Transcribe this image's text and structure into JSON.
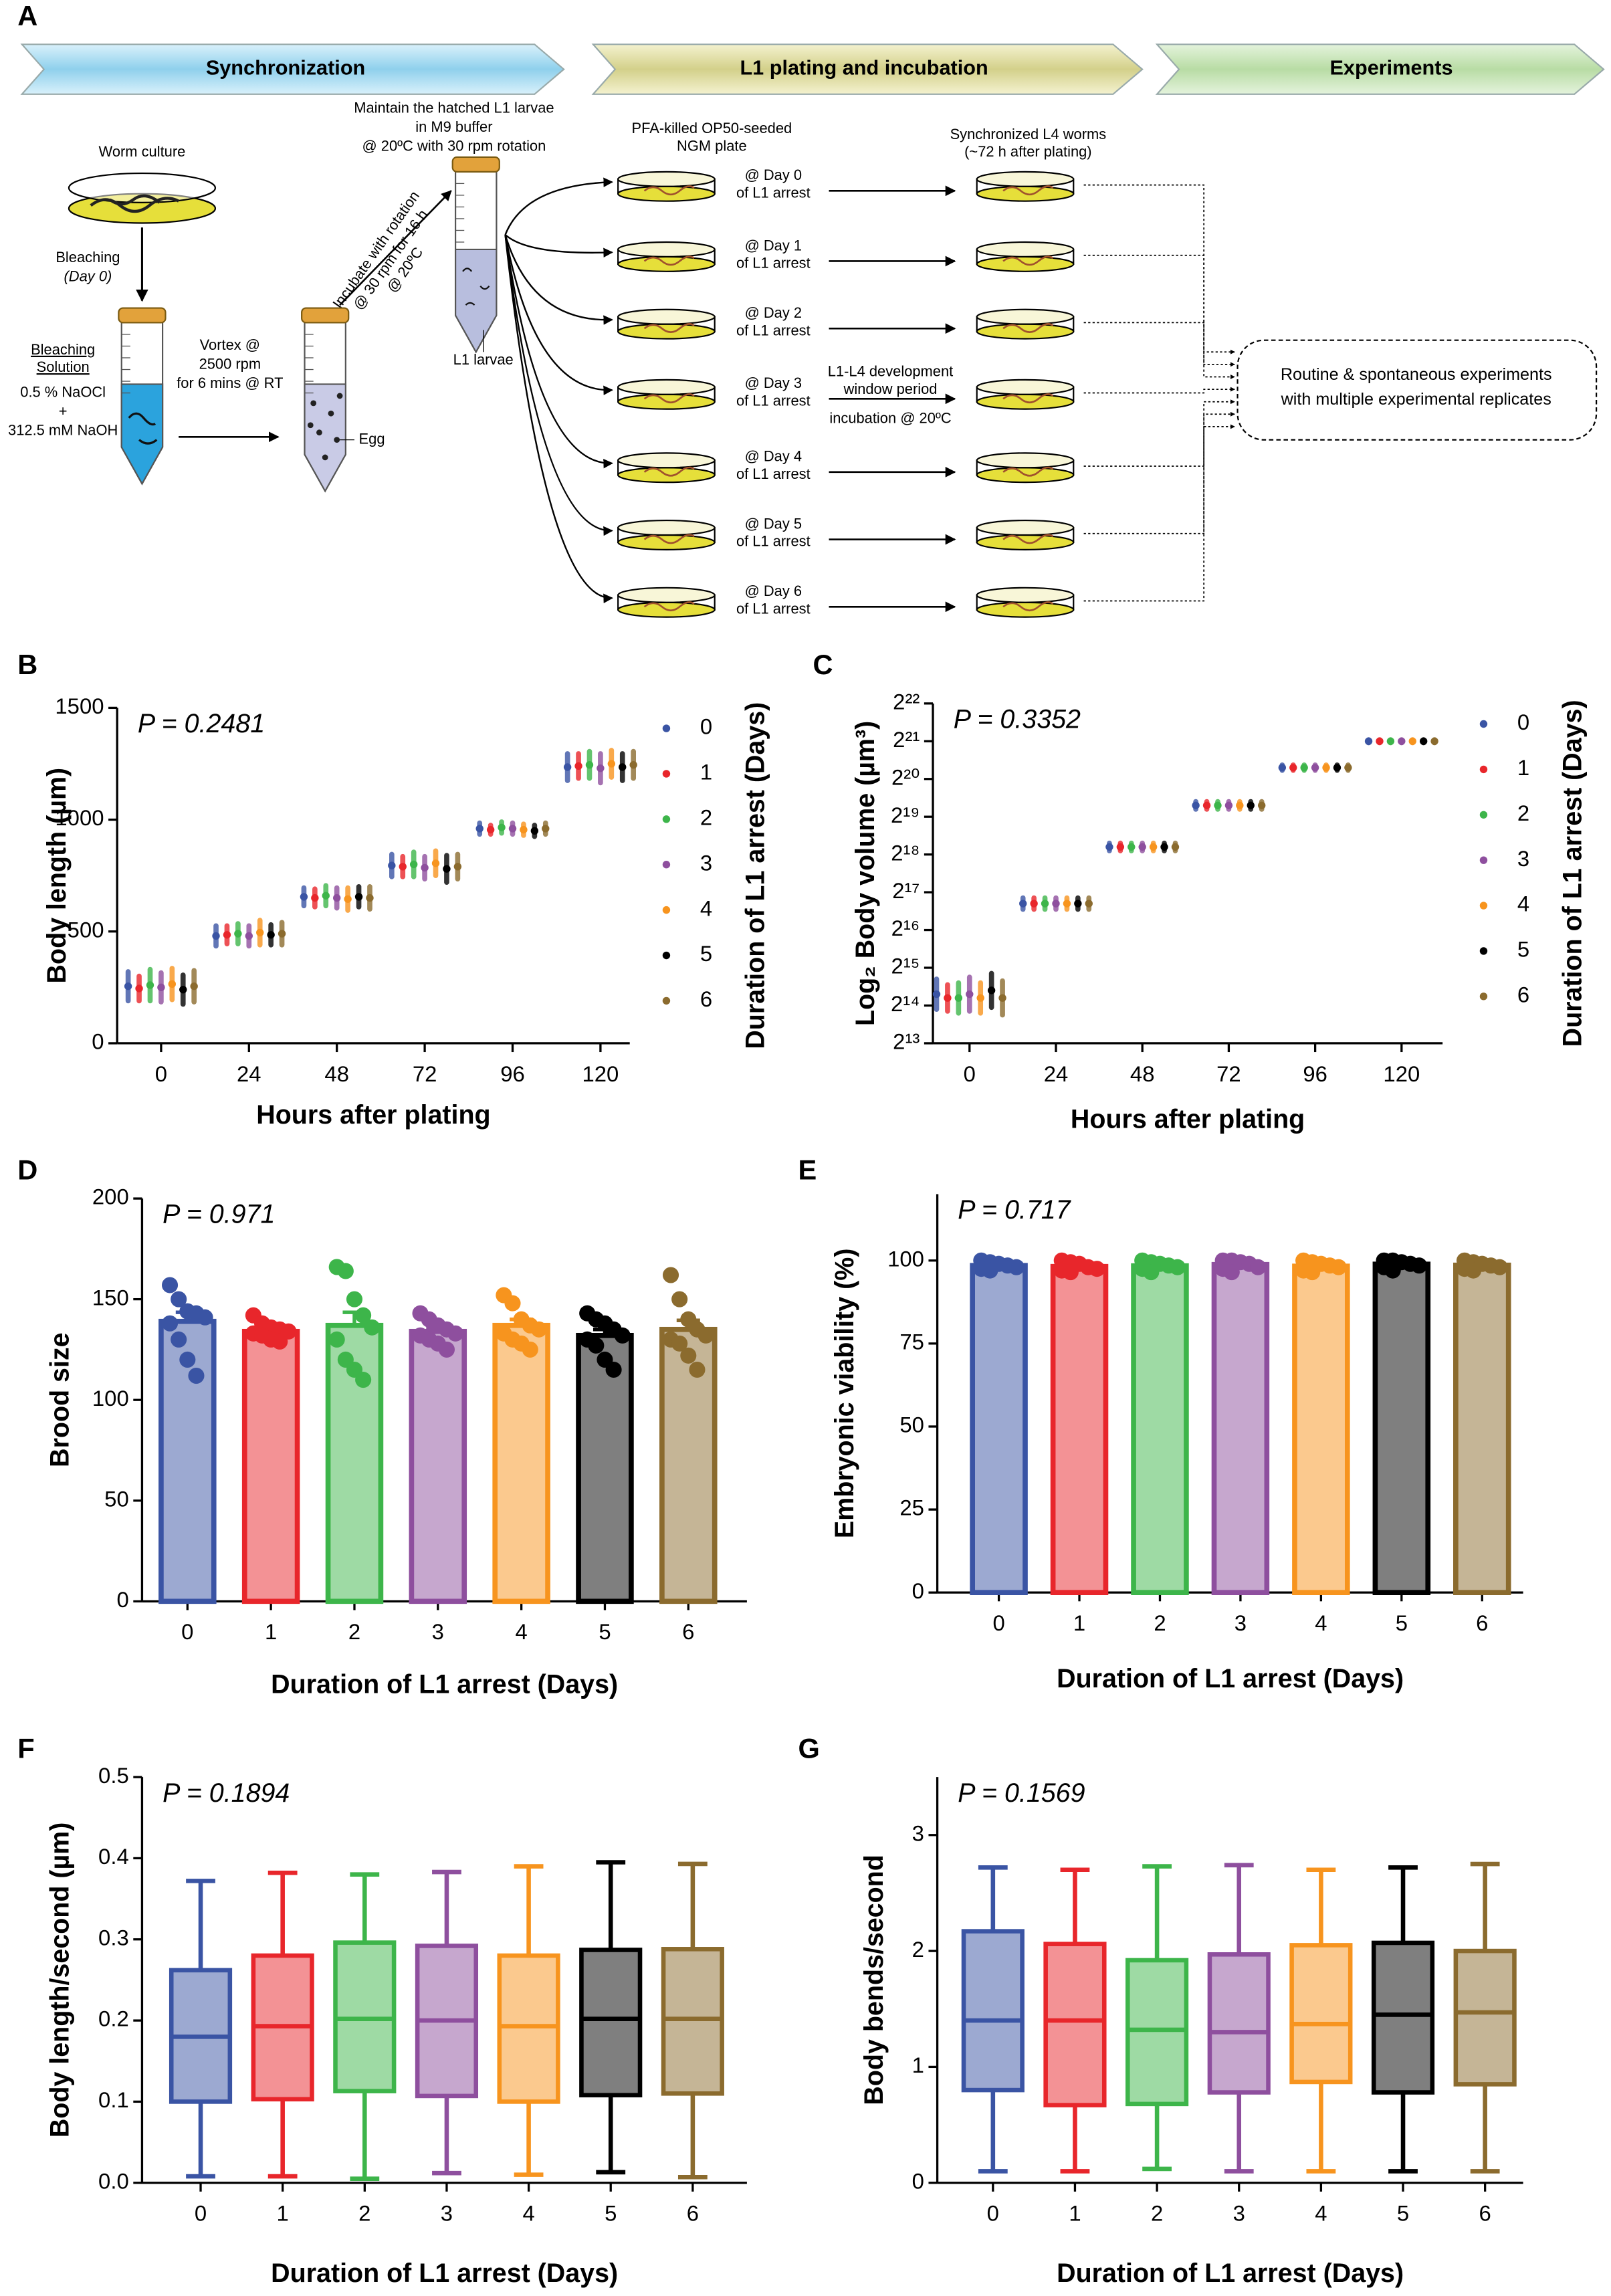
{
  "diagram": {
    "panel_label": "A",
    "stages": [
      "Synchronization",
      "L1 plating and incubation",
      "Experiments"
    ],
    "worm_culture": "Worm culture",
    "bleaching": [
      "Bleaching",
      "(Day 0)"
    ],
    "bleaching_solution": [
      "Bleaching",
      "Solution",
      "0.5 % NaOCl",
      "+",
      "312.5 mM NaOH"
    ],
    "vortex": [
      "Vortex @",
      "2500 rpm",
      "for 6 mins @ RT"
    ],
    "egg": "Egg",
    "incubate": [
      "Incubate with rotation",
      "@ 30 rpm for 16 h",
      "@ 20ºC"
    ],
    "maintain": [
      "Maintain the hatched L1 larvae",
      "in M9 buffer",
      "@ 20ºC with 30 rpm rotation"
    ],
    "l1_larvae": "L1 larvae",
    "plate_label": [
      "PFA-killed OP50-seeded",
      "NGM plate"
    ],
    "l4_label": [
      "Synchronized L4 worms",
      "(~72 h after plating)"
    ],
    "plates": [
      {
        "day": "@ Day 0",
        "arrest": "of L1 arrest"
      },
      {
        "day": "@ Day 1",
        "arrest": "of L1 arrest"
      },
      {
        "day": "@ Day 2",
        "arrest": "of L1 arrest"
      },
      {
        "day": "@ Day 3",
        "arrest": "of L1 arrest"
      },
      {
        "day": "@ Day 4",
        "arrest": "of L1 arrest"
      },
      {
        "day": "@ Day 5",
        "arrest": "of L1 arrest"
      },
      {
        "day": "@ Day 6",
        "arrest": "of L1 arrest"
      }
    ],
    "window": [
      "L1-L4 development",
      "window period",
      "incubation @ 20ºC"
    ],
    "experiments": [
      "Routine & spontaneous experiments",
      "with multiple experimental replicates"
    ]
  },
  "chart_data": [
    {
      "panel_label": "B",
      "type": "strip",
      "annotation": "P = 0.2481",
      "x_label": "Hours after plating",
      "y_label": "Body length (µm)",
      "legend_title": "Duration of L1 arrest (Days)",
      "categories": [
        "0",
        "24",
        "48",
        "72",
        "96",
        "120"
      ],
      "ylim": [
        0,
        1500
      ],
      "yticks": [
        0,
        500,
        1000,
        1500
      ],
      "series": [
        {
          "name": "0",
          "color": "#3a54a4",
          "values": [
            255,
            480,
            655,
            795,
            960,
            1235
          ],
          "errors": [
            65,
            45,
            40,
            50,
            25,
            60
          ]
        },
        {
          "name": "1",
          "color": "#e8262b",
          "values": [
            245,
            485,
            650,
            790,
            955,
            1240
          ],
          "errors": [
            55,
            40,
            40,
            45,
            20,
            55
          ]
        },
        {
          "name": "2",
          "color": "#3db54a",
          "values": [
            260,
            490,
            660,
            800,
            965,
            1245
          ],
          "errors": [
            70,
            45,
            45,
            55,
            25,
            60
          ]
        },
        {
          "name": "3",
          "color": "#8e4f9e",
          "values": [
            250,
            480,
            650,
            785,
            960,
            1230
          ],
          "errors": [
            65,
            45,
            45,
            50,
            25,
            65
          ]
        },
        {
          "name": "4",
          "color": "#f7941e",
          "values": [
            265,
            495,
            645,
            805,
            955,
            1250
          ],
          "errors": [
            70,
            55,
            50,
            55,
            25,
            60
          ]
        },
        {
          "name": "5",
          "color": "#000000",
          "values": [
            240,
            485,
            655,
            780,
            950,
            1235
          ],
          "errors": [
            65,
            45,
            45,
            60,
            25,
            60
          ]
        },
        {
          "name": "6",
          "color": "#8b6b2e",
          "values": [
            255,
            490,
            650,
            790,
            960,
            1245
          ],
          "errors": [
            70,
            50,
            50,
            55,
            25,
            60
          ]
        }
      ]
    },
    {
      "panel_label": "C",
      "type": "strip",
      "annotation": "P = 0.3352",
      "x_label": "Hours after plating",
      "y_label": "Log₂ Body volume (µm³)",
      "legend_title": "Duration of L1 arrest (Days)",
      "categories": [
        "0",
        "24",
        "48",
        "72",
        "96",
        "120"
      ],
      "ylim": [
        13,
        22
      ],
      "yticks": [
        {
          "value": 13,
          "label": "2¹³"
        },
        {
          "value": 14,
          "label": "2¹⁴"
        },
        {
          "value": 15,
          "label": "2¹⁵"
        },
        {
          "value": 16,
          "label": "2¹⁶"
        },
        {
          "value": 17,
          "label": "2¹⁷"
        },
        {
          "value": 18,
          "label": "2¹⁸"
        },
        {
          "value": 19,
          "label": "2¹⁹"
        },
        {
          "value": 20,
          "label": "2²⁰"
        },
        {
          "value": 21,
          "label": "2²¹"
        },
        {
          "value": 22,
          "label": "2²²"
        }
      ],
      "series": [
        {
          "name": "0",
          "color": "#3a54a4",
          "values": [
            14.3,
            16.7,
            18.2,
            19.3,
            20.3,
            21.0
          ],
          "errors": [
            0.4,
            0.15,
            0.1,
            0.1,
            0.07,
            0.04
          ]
        },
        {
          "name": "1",
          "color": "#e8262b",
          "values": [
            14.2,
            16.7,
            18.2,
            19.3,
            20.3,
            21.0
          ],
          "errors": [
            0.35,
            0.15,
            0.1,
            0.1,
            0.07,
            0.04
          ]
        },
        {
          "name": "2",
          "color": "#3db54a",
          "values": [
            14.2,
            16.7,
            18.2,
            19.3,
            20.3,
            21.0
          ],
          "errors": [
            0.4,
            0.15,
            0.1,
            0.1,
            0.07,
            0.04
          ]
        },
        {
          "name": "3",
          "color": "#8e4f9e",
          "values": [
            14.3,
            16.7,
            18.2,
            19.3,
            20.3,
            21.0
          ],
          "errors": [
            0.45,
            0.15,
            0.1,
            0.1,
            0.07,
            0.04
          ]
        },
        {
          "name": "4",
          "color": "#f7941e",
          "values": [
            14.2,
            16.7,
            18.2,
            19.3,
            20.3,
            21.0
          ],
          "errors": [
            0.4,
            0.15,
            0.1,
            0.1,
            0.07,
            0.04
          ]
        },
        {
          "name": "5",
          "color": "#000000",
          "values": [
            14.4,
            16.7,
            18.2,
            19.3,
            20.3,
            21.0
          ],
          "errors": [
            0.45,
            0.15,
            0.1,
            0.1,
            0.07,
            0.04
          ]
        },
        {
          "name": "6",
          "color": "#8b6b2e",
          "values": [
            14.2,
            16.7,
            18.2,
            19.3,
            20.3,
            21.0
          ],
          "errors": [
            0.45,
            0.15,
            0.1,
            0.1,
            0.07,
            0.04
          ]
        }
      ]
    },
    {
      "panel_label": "D",
      "type": "bar",
      "annotation": "P = 0.971",
      "x_label": "Duration of L1 arrest (Days)",
      "y_label": "Brood size",
      "categories": [
        "0",
        "1",
        "2",
        "3",
        "4",
        "5",
        "6"
      ],
      "ylim": [
        0,
        200
      ],
      "yticks": [
        0,
        50,
        100,
        150,
        200
      ],
      "colors": [
        "#3a54a4",
        "#e8262b",
        "#3db54a",
        "#8e4f9e",
        "#f7941e",
        "#000000",
        "#8b6b2e"
      ],
      "values": [
        139,
        134,
        137,
        134,
        137,
        132,
        135
      ],
      "errors": [
        4.5,
        1.5,
        6.5,
        2,
        3,
        3,
        4.5
      ],
      "points": [
        [
          157,
          150,
          144,
          143,
          141,
          138,
          130,
          120,
          112
        ],
        [
          142,
          138,
          136,
          135,
          134,
          133,
          132,
          130,
          129
        ],
        [
          166,
          164,
          150,
          142,
          136,
          130,
          120,
          115,
          110
        ],
        [
          143,
          140,
          137,
          135,
          133,
          132,
          130,
          128,
          125
        ],
        [
          152,
          148,
          140,
          137,
          135,
          133,
          130,
          128,
          125
        ],
        [
          143,
          140,
          138,
          135,
          132,
          130,
          127,
          120,
          115
        ],
        [
          162,
          150,
          140,
          135,
          132,
          130,
          128,
          122,
          115
        ]
      ]
    },
    {
      "panel_label": "E",
      "type": "bar",
      "annotation": "P = 0.717",
      "x_label": "Duration of L1 arrest (Days)",
      "y_label": "Embryonic viability (%)",
      "categories": [
        "0",
        "1",
        "2",
        "3",
        "4",
        "5",
        "6"
      ],
      "ylim": [
        0,
        120
      ],
      "yticks": [
        0,
        25,
        50,
        75,
        100
      ],
      "colors": [
        "#3a54a4",
        "#e8262b",
        "#3db54a",
        "#8e4f9e",
        "#f7941e",
        "#000000",
        "#8b6b2e"
      ],
      "values": [
        98.5,
        98.2,
        98.4,
        98.8,
        98.3,
        98.9,
        98.6
      ],
      "errors": [
        0.4,
        0.4,
        0.4,
        0.3,
        0.4,
        0.3,
        0.4
      ],
      "points": [
        [
          100,
          99.5,
          99,
          98.5,
          98,
          97.5,
          97
        ],
        [
          100,
          99.5,
          99,
          98,
          97.5,
          97,
          96.5
        ],
        [
          100,
          99.5,
          99,
          98.5,
          98,
          97.5,
          96.5
        ],
        [
          100,
          100,
          99.5,
          99,
          98,
          97.5,
          96.5
        ],
        [
          100,
          99.5,
          99,
          98.5,
          98,
          97,
          96.5
        ],
        [
          100,
          100,
          99.5,
          99,
          98.5,
          98,
          97
        ],
        [
          100,
          99.5,
          99,
          98.5,
          98,
          97.5,
          97
        ]
      ]
    },
    {
      "panel_label": "F",
      "type": "box",
      "annotation": "P = 0.1894",
      "x_label": "Duration of L1 arrest (Days)",
      "y_label": "Body length/second (µm)",
      "categories": [
        "0",
        "1",
        "2",
        "3",
        "4",
        "5",
        "6"
      ],
      "ylim": [
        0,
        0.5
      ],
      "yticks": [
        {
          "value": 0,
          "label": "0.0"
        },
        0.1,
        0.2,
        0.3,
        0.4,
        0.5
      ],
      "colors": [
        "#3a54a4",
        "#e8262b",
        "#3db54a",
        "#8e4f9e",
        "#f7941e",
        "#000000",
        "#8b6b2e"
      ],
      "boxes": [
        {
          "min": 0.008,
          "q1": 0.1,
          "median": 0.18,
          "q3": 0.262,
          "max": 0.372
        },
        {
          "min": 0.008,
          "q1": 0.103,
          "median": 0.193,
          "q3": 0.28,
          "max": 0.382
        },
        {
          "min": 0.005,
          "q1": 0.113,
          "median": 0.202,
          "q3": 0.296,
          "max": 0.38
        },
        {
          "min": 0.012,
          "q1": 0.107,
          "median": 0.2,
          "q3": 0.292,
          "max": 0.383
        },
        {
          "min": 0.01,
          "q1": 0.1,
          "median": 0.193,
          "q3": 0.28,
          "max": 0.39
        },
        {
          "min": 0.013,
          "q1": 0.108,
          "median": 0.202,
          "q3": 0.287,
          "max": 0.395
        },
        {
          "min": 0.007,
          "q1": 0.11,
          "median": 0.202,
          "q3": 0.288,
          "max": 0.393
        }
      ]
    },
    {
      "panel_label": "G",
      "type": "box",
      "annotation": "P = 0.1569",
      "x_label": "Duration of L1 arrest (Days)",
      "y_label": "Body bends/second",
      "categories": [
        "0",
        "1",
        "2",
        "3",
        "4",
        "5",
        "6"
      ],
      "ylim": [
        0,
        3.5
      ],
      "yticks": [
        0,
        1,
        2,
        3
      ],
      "colors": [
        "#3a54a4",
        "#e8262b",
        "#3db54a",
        "#8e4f9e",
        "#f7941e",
        "#000000",
        "#8b6b2e"
      ],
      "boxes": [
        {
          "min": 0.1,
          "q1": 0.8,
          "median": 1.4,
          "q3": 2.17,
          "max": 2.72
        },
        {
          "min": 0.1,
          "q1": 0.67,
          "median": 1.4,
          "q3": 2.06,
          "max": 2.7
        },
        {
          "min": 0.12,
          "q1": 0.68,
          "median": 1.32,
          "q3": 1.92,
          "max": 2.73
        },
        {
          "min": 0.1,
          "q1": 0.78,
          "median": 1.3,
          "q3": 1.97,
          "max": 2.74
        },
        {
          "min": 0.1,
          "q1": 0.87,
          "median": 1.37,
          "q3": 2.05,
          "max": 2.7
        },
        {
          "min": 0.1,
          "q1": 0.78,
          "median": 1.45,
          "q3": 2.07,
          "max": 2.72
        },
        {
          "min": 0.1,
          "q1": 0.85,
          "median": 1.47,
          "q3": 2.0,
          "max": 2.75
        }
      ]
    }
  ]
}
